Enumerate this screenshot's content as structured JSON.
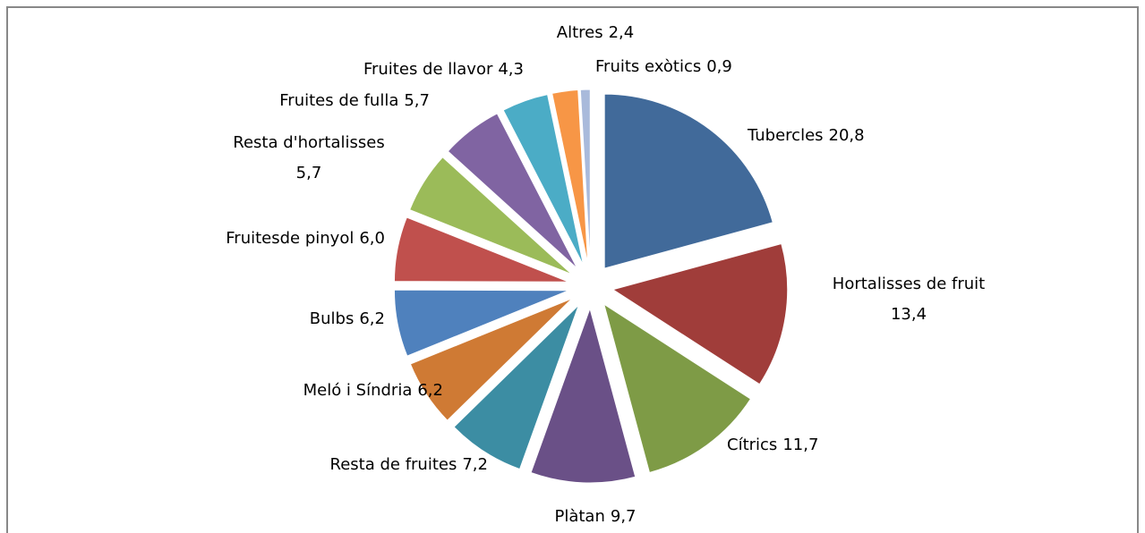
{
  "chart_data": {
    "type": "pie",
    "categories": [
      "Tubercles",
      "Hortalisses de fruit",
      "Cítrics",
      "Plàtan",
      "Resta de fruites",
      "Meló i Síndria",
      "Bulbs",
      "Fruitesde pinyol",
      "Resta d'hortalisses",
      "Fruites de fulla",
      "Fruites de llavor",
      "Altres",
      "Fruits exòtics"
    ],
    "values": [
      20.8,
      13.4,
      11.7,
      9.7,
      7.2,
      6.2,
      6.2,
      6.0,
      5.7,
      5.7,
      4.3,
      2.4,
      0.9
    ],
    "value_labels": [
      "20,8",
      "13,4",
      "11,7",
      "9,7",
      "7,2",
      "6,2",
      "6,2",
      "6,0",
      "5,7",
      "5,7",
      "4,3",
      "2,4",
      "0,9"
    ],
    "colors": [
      "#416A9A",
      "#A03D3A",
      "#7E9B46",
      "#6A5087",
      "#3C8DA3",
      "#CF7A34",
      "#4F81BD",
      "#C0504D",
      "#9BBB59",
      "#8064A2",
      "#4BACC6",
      "#F79646",
      "#A9BADB"
    ]
  }
}
